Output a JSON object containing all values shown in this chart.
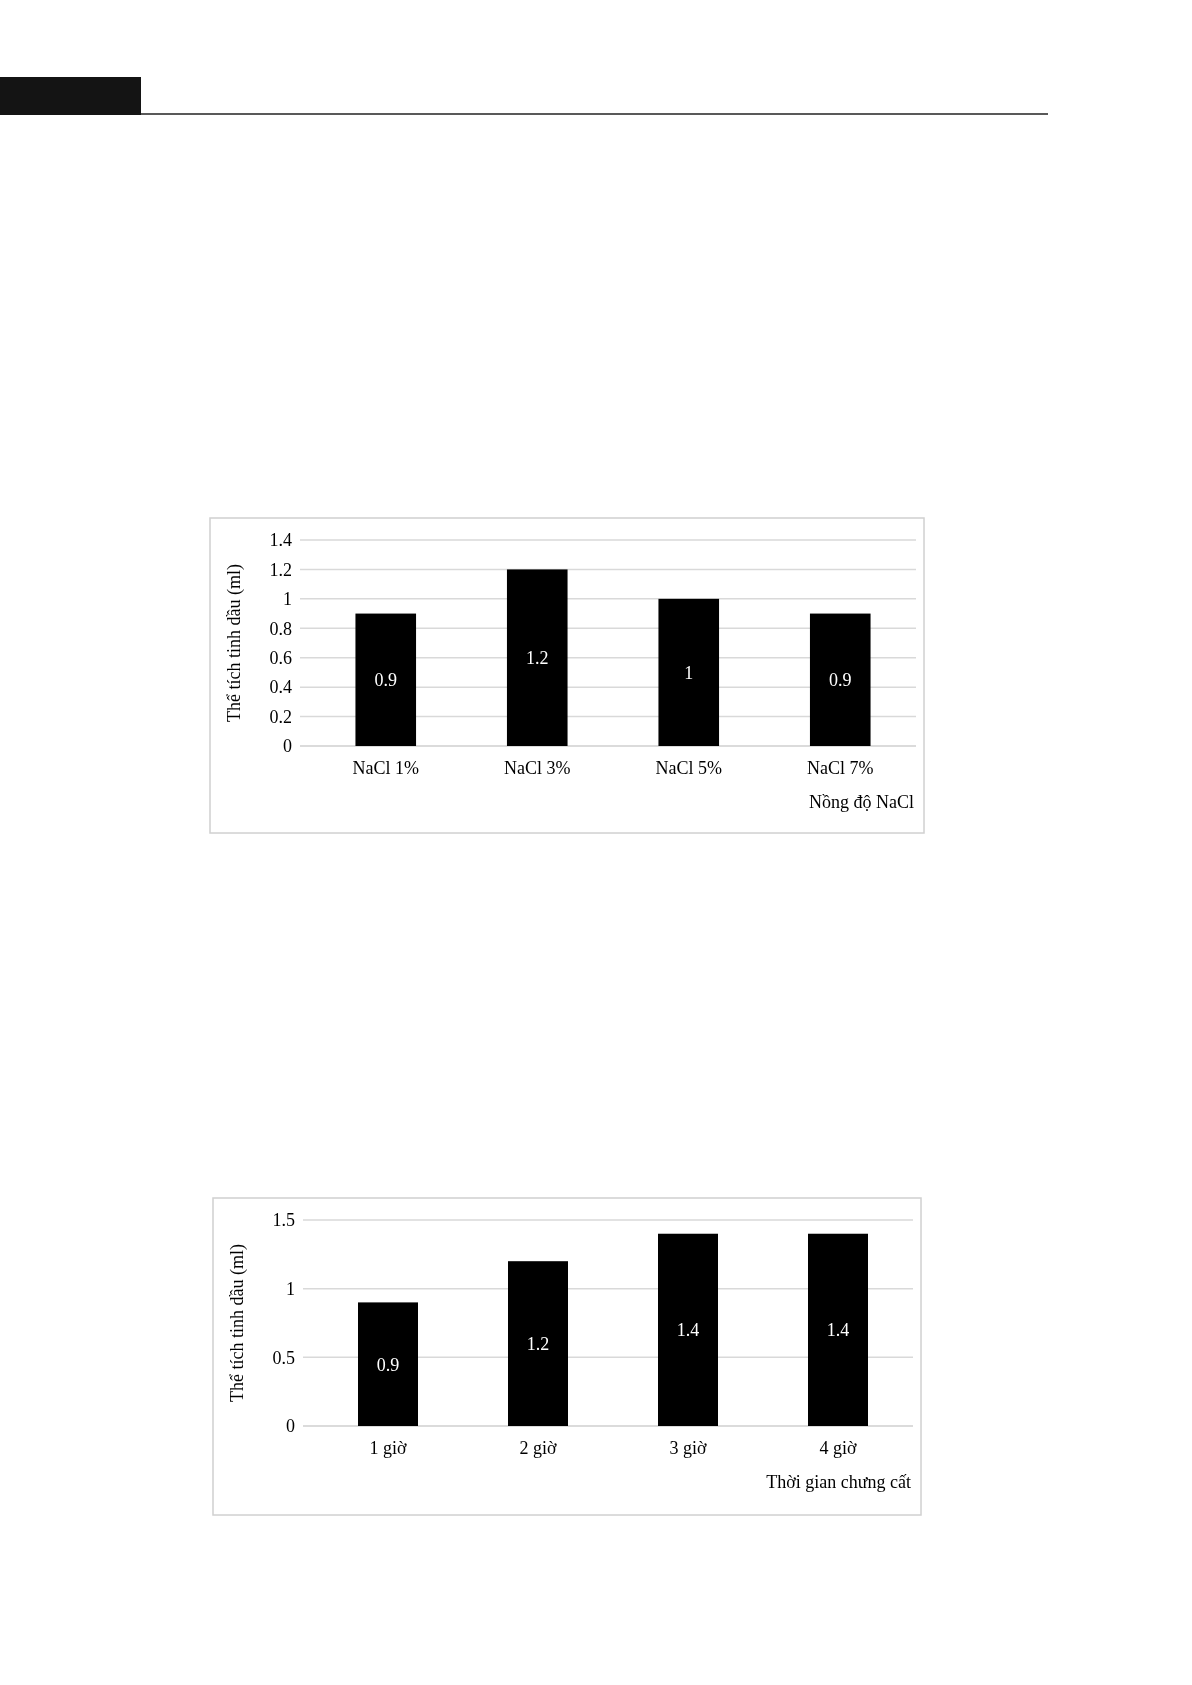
{
  "chart_data": [
    {
      "type": "bar",
      "xlabel": "Nồng độ NaCl",
      "ylabel": "Thể tích tinh dầu (ml)",
      "categories": [
        "NaCl 1%",
        "NaCl 3%",
        "NaCl 5%",
        "NaCl 7%"
      ],
      "values": [
        0.9,
        1.2,
        1,
        0.9
      ],
      "color": "#000000",
      "ylim": [
        0,
        1.4
      ],
      "yticks": [
        0,
        0.2,
        0.4,
        0.6,
        0.8,
        1,
        1.2,
        1.4
      ],
      "grid": "y",
      "data_labels": true
    },
    {
      "type": "bar",
      "xlabel": "Thời gian chưng cất",
      "ylabel": "Thể tích tinh dầu (ml)",
      "categories": [
        "1 giờ",
        "2 giờ",
        "3 giờ",
        "4 giờ"
      ],
      "values": [
        0.9,
        1.2,
        1.4,
        1.4
      ],
      "color": "#000000",
      "ylim": [
        0,
        1.5
      ],
      "yticks": [
        0,
        0.5,
        1,
        1.5
      ],
      "grid": "y",
      "data_labels": true
    }
  ]
}
